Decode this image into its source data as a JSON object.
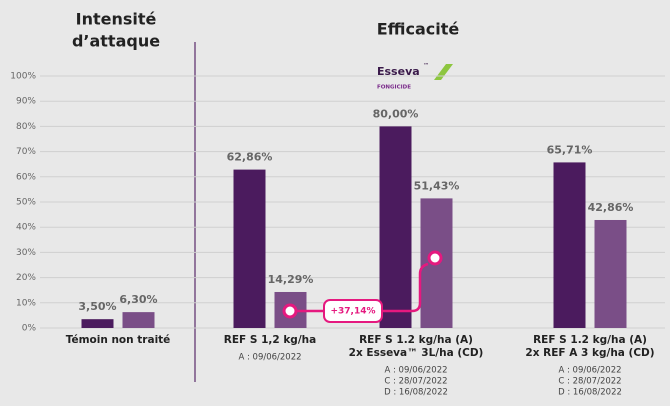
{
  "chart_data": {
    "type": "bar",
    "section_titles": [
      [
        "Intensité",
        "d’attaque"
      ],
      [
        "Efficacité"
      ]
    ],
    "logo": {
      "brand": "Esseva",
      "tm": "™",
      "subtitle": "FONGICIDE"
    },
    "categories": [
      [
        "Témoin non traité"
      ],
      [
        "REF S 1,2 kg/ha"
      ],
      [
        "REF S 1.2 kg/ha (A)",
        "2x Esseva™ 3L/ha (CD)"
      ],
      [
        "REF S 1.2 kg/ha (A)",
        "2x REF A 3 kg/ha (CD)"
      ]
    ],
    "dates": [
      null,
      [
        "A : 09/06/2022"
      ],
      [
        "A : 09/06/2022",
        "C : 28/07/2022",
        "D : 16/08/2022"
      ],
      [
        "A : 09/06/2022",
        "C : 28/07/2022",
        "D : 16/08/2022"
      ]
    ],
    "series": [
      {
        "color": "#4b1b5e",
        "values": [
          3.5,
          62.86,
          80.0,
          65.71
        ],
        "value_labels": [
          "3,50%",
          "62,86%",
          "80,00%",
          "65,71%"
        ]
      },
      {
        "color": "#7a4e87",
        "values": [
          6.3,
          14.29,
          51.43,
          42.86
        ],
        "value_labels": [
          "6,30%",
          "14,29%",
          "51,43%",
          "42,86%"
        ]
      }
    ],
    "annotation": "+37,14%",
    "ylim": [
      0,
      100
    ],
    "yticks": [
      {
        "value": 0,
        "label": "0%"
      },
      {
        "value": 10,
        "label": "10%"
      },
      {
        "value": 20,
        "label": "20%"
      },
      {
        "value": 30,
        "label": "30%"
      },
      {
        "value": 40,
        "label": "40%"
      },
      {
        "value": 50,
        "label": "50%"
      },
      {
        "value": 60,
        "label": "60%"
      },
      {
        "value": 70,
        "label": "70%"
      },
      {
        "value": 80,
        "label": "80%"
      },
      {
        "value": 90,
        "label": "90%"
      },
      {
        "value": 100,
        "label": "100%"
      }
    ],
    "grid": true
  }
}
